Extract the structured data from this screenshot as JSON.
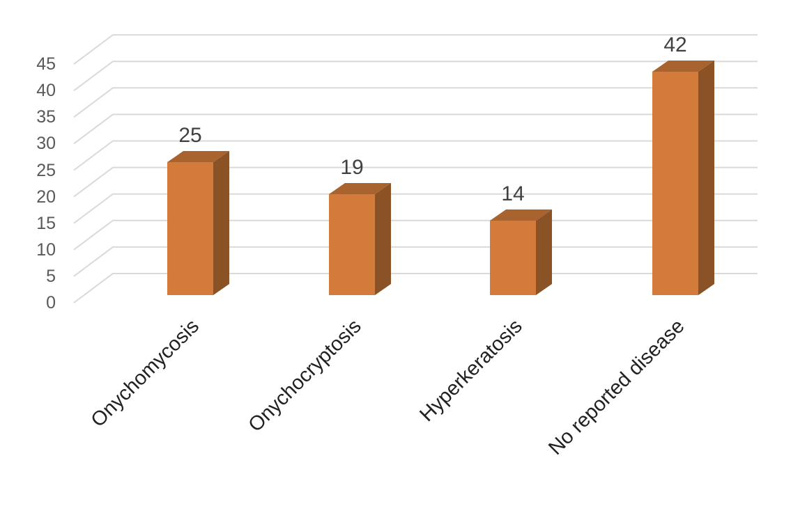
{
  "chart_data": {
    "type": "bar",
    "subtype": "3d-column",
    "title": "",
    "xlabel": "",
    "ylabel": "",
    "categories": [
      "Onychomycosis",
      "Onychocryptosis",
      "Hyperkeratosis",
      "No reported disease"
    ],
    "values": [
      25,
      19,
      14,
      42
    ],
    "data_labels": [
      "25",
      "19",
      "14",
      "42"
    ],
    "y_ticks": [
      0,
      5,
      10,
      15,
      20,
      25,
      30,
      35,
      40,
      45
    ],
    "ylim": [
      0,
      45
    ],
    "grid": true,
    "legend_position": "none",
    "category_label_rotation_deg": 45,
    "colors": {
      "bar_front": "#D27B3A",
      "bar_side": "#8B5226",
      "bar_top": "#A9632E",
      "gridline": "#D9D9D9",
      "tick_label": "#595959",
      "data_label": "#404040",
      "category_label": "#212121",
      "background": "#FFFFFF"
    }
  }
}
